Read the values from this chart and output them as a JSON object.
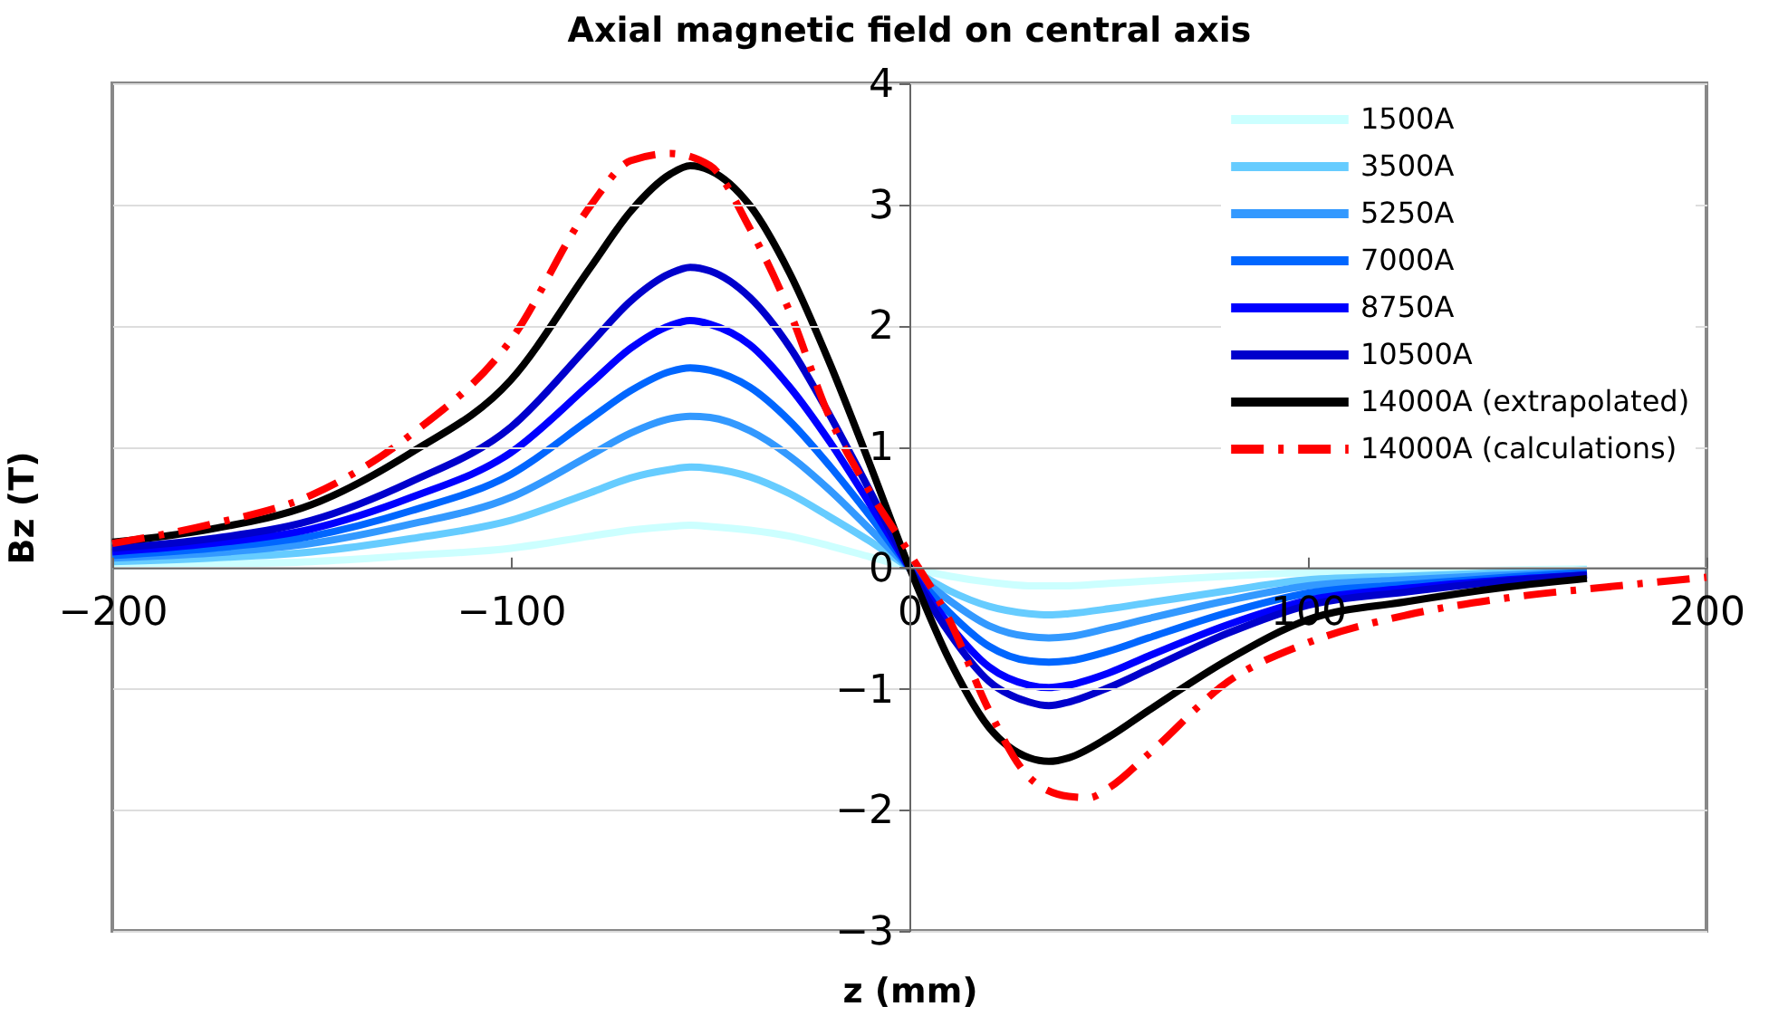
{
  "chart_data": {
    "type": "line",
    "title": "Axial magnetic field on central axis",
    "xlabel": "z (mm)",
    "ylabel": "Bz (T)",
    "x": [
      -200,
      -175,
      -150,
      -125,
      -100,
      -80,
      -70,
      -60,
      -55,
      -50,
      -40,
      -30,
      -20,
      -10,
      0,
      10,
      20,
      30,
      35,
      40,
      50,
      60,
      80,
      100,
      125,
      150,
      170
    ],
    "series": [
      {
        "name": "1500A",
        "color": "#ccffff",
        "values": [
          0.02,
          0.03,
          0.05,
          0.1,
          0.16,
          0.26,
          0.31,
          0.34,
          0.35,
          0.34,
          0.31,
          0.26,
          0.18,
          0.09,
          0,
          -0.07,
          -0.12,
          -0.15,
          -0.15,
          -0.15,
          -0.13,
          -0.11,
          -0.07,
          -0.04,
          -0.03,
          -0.02,
          -0.01
        ]
      },
      {
        "name": "3500A",
        "color": "#66ccff",
        "values": [
          0.05,
          0.08,
          0.13,
          0.24,
          0.39,
          0.62,
          0.74,
          0.81,
          0.83,
          0.82,
          0.75,
          0.61,
          0.42,
          0.22,
          0,
          -0.19,
          -0.32,
          -0.38,
          -0.39,
          -0.38,
          -0.34,
          -0.29,
          -0.19,
          -0.1,
          -0.07,
          -0.04,
          -0.02
        ]
      },
      {
        "name": "5250A",
        "color": "#3399ff",
        "values": [
          0.08,
          0.12,
          0.2,
          0.36,
          0.58,
          0.93,
          1.11,
          1.23,
          1.25,
          1.24,
          1.13,
          0.92,
          0.64,
          0.32,
          0,
          -0.27,
          -0.48,
          -0.57,
          -0.58,
          -0.57,
          -0.5,
          -0.42,
          -0.27,
          -0.15,
          -0.1,
          -0.06,
          -0.03
        ]
      },
      {
        "name": "7000A",
        "color": "#0066ff",
        "values": [
          0.1,
          0.16,
          0.26,
          0.47,
          0.77,
          1.23,
          1.46,
          1.62,
          1.65,
          1.63,
          1.49,
          1.21,
          0.84,
          0.43,
          0,
          -0.37,
          -0.65,
          -0.77,
          -0.78,
          -0.77,
          -0.69,
          -0.58,
          -0.37,
          -0.21,
          -0.14,
          -0.08,
          -0.04
        ]
      },
      {
        "name": "8750A",
        "color": "#0000ff",
        "values": [
          0.13,
          0.2,
          0.32,
          0.58,
          0.95,
          1.52,
          1.81,
          2.0,
          2.04,
          2.01,
          1.84,
          1.49,
          1.04,
          0.53,
          0,
          -0.47,
          -0.82,
          -0.97,
          -0.99,
          -0.97,
          -0.87,
          -0.73,
          -0.47,
          -0.27,
          -0.17,
          -0.1,
          -0.06
        ]
      },
      {
        "name": "10500A",
        "color": "#0000cc",
        "values": [
          0.16,
          0.24,
          0.39,
          0.71,
          1.16,
          1.85,
          2.2,
          2.43,
          2.48,
          2.45,
          2.23,
          1.82,
          1.26,
          0.64,
          0,
          -0.54,
          -0.94,
          -1.11,
          -1.14,
          -1.11,
          -0.99,
          -0.84,
          -0.54,
          -0.31,
          -0.2,
          -0.11,
          -0.06
        ]
      },
      {
        "name": "14000A (extrapolated)",
        "color": "#000000",
        "values": [
          0.21,
          0.32,
          0.52,
          0.95,
          1.55,
          2.48,
          2.94,
          3.25,
          3.32,
          3.28,
          2.99,
          2.43,
          1.69,
          0.86,
          0,
          -0.76,
          -1.32,
          -1.57,
          -1.6,
          -1.57,
          -1.4,
          -1.18,
          -0.76,
          -0.43,
          -0.28,
          -0.16,
          -0.09
        ]
      },
      {
        "name": "14000A (calculations)",
        "color": "#ff0000",
        "line_style": "dashed",
        "x": [
          -200,
          -175,
          -150,
          -125,
          -100,
          -80,
          -70,
          -60,
          -50,
          -40,
          -30,
          -20,
          -10,
          0,
          10,
          20,
          30,
          40,
          45,
          50,
          60,
          80,
          100,
          125,
          150,
          175,
          200
        ],
        "values": [
          0.2,
          0.36,
          0.6,
          1.1,
          1.88,
          2.99,
          3.36,
          3.42,
          3.32,
          2.8,
          2.11,
          1.24,
          0.63,
          0.12,
          -0.43,
          -1.18,
          -1.73,
          -1.89,
          -1.9,
          -1.82,
          -1.54,
          -0.94,
          -0.62,
          -0.39,
          -0.25,
          -0.16,
          -0.08
        ]
      }
    ],
    "xlim": [
      -200,
      200
    ],
    "xticks": [
      -200,
      -100,
      0,
      100,
      200
    ],
    "ylim": [
      -3,
      4
    ],
    "yticks": [
      -3,
      -2,
      -1,
      0,
      1,
      2,
      3,
      4
    ],
    "grid": "y",
    "legend": "top right"
  }
}
